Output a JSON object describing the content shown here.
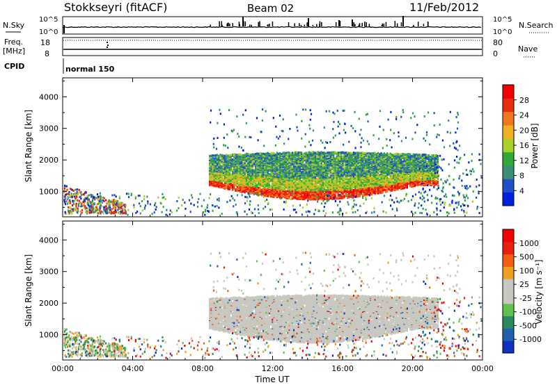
{
  "header": {
    "station": "Stokkseyri (fitACF)",
    "beam": "Beam 02",
    "date": "11/Feb/2012"
  },
  "top_panels": {
    "nsky_label": "N.Sky",
    "nsearch_label": "N.Search",
    "freq_label_line1": "Freq.",
    "freq_label_line2": "[MHz]",
    "nave_label": "Nave",
    "cpid_label": "CPID",
    "cpid_value": "normal 150",
    "left_ticks": [
      "10^5",
      "10^0",
      "18",
      "8"
    ],
    "right_ticks": [
      "10^5",
      "10^0",
      "80",
      "0"
    ]
  },
  "chart_data": [
    {
      "type": "heatmap",
      "name": "power-panel",
      "ylabel": "Slant Range [km]",
      "xlabel": "",
      "ylim": [
        200,
        4600
      ],
      "y_ticks": [
        1000,
        2000,
        3000,
        4000
      ],
      "colorbar_label": "Power [dB]",
      "colorbar_ticks": [
        "28",
        "24",
        "20",
        "16",
        "12",
        "8",
        "4"
      ],
      "colors": [
        "#0020e0",
        "#2050c8",
        "#3a8f78",
        "#2faa3a",
        "#a8d028",
        "#f0b020",
        "#f07820",
        "#e83010",
        "#f00000"
      ]
    },
    {
      "type": "heatmap",
      "name": "velocity-panel",
      "ylabel": "Slant Range [km]",
      "xlabel": "Time UT",
      "ylim": [
        200,
        4600
      ],
      "y_ticks": [
        1000,
        2000,
        3000,
        4000
      ],
      "x_ticks": [
        "00:00",
        "04:00",
        "08:00",
        "12:00",
        "16:00",
        "20:00",
        "00:00"
      ],
      "colorbar_label": "Velocity [m s⁻¹]",
      "colorbar_ticks": [
        "1000",
        "500",
        "100",
        "25",
        "-25",
        "-100",
        "-500",
        "-1000"
      ],
      "colors": [
        "#1030c0",
        "#2060b0",
        "#2a8a5a",
        "#60c050",
        "#c8c8c0",
        "#c8c8c0",
        "#f0a020",
        "#f06010",
        "#e82010",
        "#f00000"
      ]
    }
  ]
}
